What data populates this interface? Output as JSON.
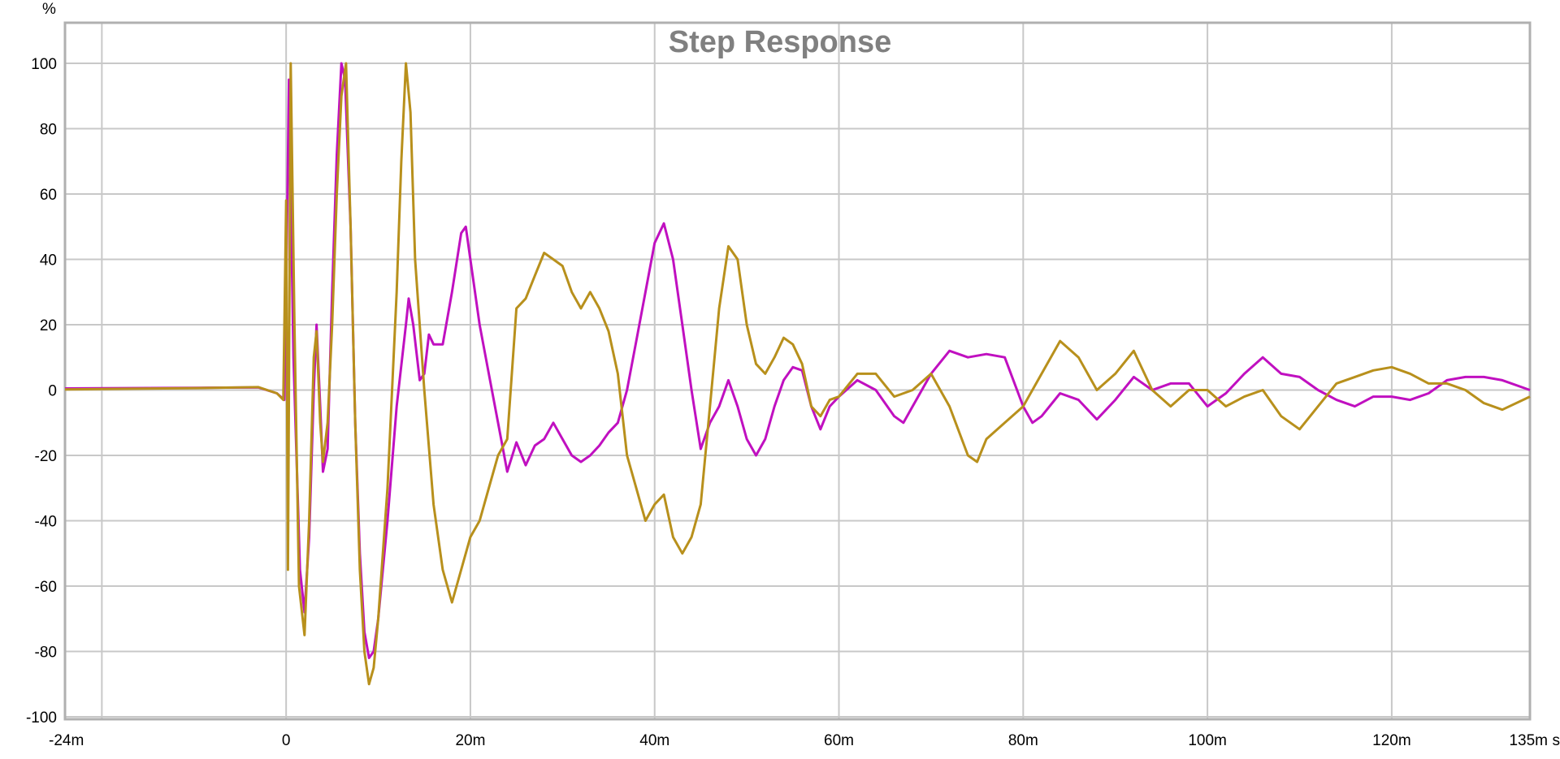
{
  "chart_data": {
    "type": "line",
    "title": "Step Response",
    "y_unit": "%",
    "x_unit": "s",
    "xlim": [
      -0.024,
      0.135
    ],
    "ylim": [
      -100,
      110
    ],
    "grid": true,
    "x_ticks": [
      {
        "value": -0.024,
        "label": "-24m"
      },
      {
        "value": 0,
        "label": "0"
      },
      {
        "value": 0.02,
        "label": "20m"
      },
      {
        "value": 0.04,
        "label": "40m"
      },
      {
        "value": 0.06,
        "label": "60m"
      },
      {
        "value": 0.08,
        "label": "80m"
      },
      {
        "value": 0.1,
        "label": "100m"
      },
      {
        "value": 0.12,
        "label": "120m"
      },
      {
        "value": 0.135,
        "label": "135m"
      }
    ],
    "y_ticks": [
      {
        "value": 100,
        "label": "100"
      },
      {
        "value": 80,
        "label": "80"
      },
      {
        "value": 60,
        "label": "60"
      },
      {
        "value": 40,
        "label": "40"
      },
      {
        "value": 20,
        "label": "20"
      },
      {
        "value": 0,
        "label": "0"
      },
      {
        "value": -20,
        "label": "-20"
      },
      {
        "value": -40,
        "label": "-40"
      },
      {
        "value": -60,
        "label": "-60"
      },
      {
        "value": -80,
        "label": "-80"
      },
      {
        "value": -100,
        "label": "-100"
      }
    ],
    "series": [
      {
        "color": "#c010c0",
        "points": [
          [
            -0.024,
            0.5
          ],
          [
            -0.01,
            0.7
          ],
          [
            -0.003,
            0.8
          ],
          [
            -0.001,
            -1
          ],
          [
            -0.0002,
            -3
          ],
          [
            0.0,
            30
          ],
          [
            0.0003,
            95
          ],
          [
            0.0008,
            10
          ],
          [
            0.0015,
            -55
          ],
          [
            0.002,
            -68
          ],
          [
            0.0025,
            -45
          ],
          [
            0.003,
            0
          ],
          [
            0.0033,
            20
          ],
          [
            0.0037,
            -5
          ],
          [
            0.004,
            -25
          ],
          [
            0.0045,
            -18
          ],
          [
            0.005,
            30
          ],
          [
            0.0055,
            72
          ],
          [
            0.006,
            100
          ],
          [
            0.0064,
            95
          ],
          [
            0.007,
            50
          ],
          [
            0.0075,
            -10
          ],
          [
            0.008,
            -50
          ],
          [
            0.0085,
            -74
          ],
          [
            0.009,
            -82
          ],
          [
            0.0095,
            -80
          ],
          [
            0.01,
            -70
          ],
          [
            0.011,
            -40
          ],
          [
            0.012,
            -5
          ],
          [
            0.013,
            20
          ],
          [
            0.0133,
            28
          ],
          [
            0.0138,
            20
          ],
          [
            0.0145,
            3
          ],
          [
            0.015,
            5
          ],
          [
            0.0155,
            17
          ],
          [
            0.016,
            14
          ],
          [
            0.017,
            14
          ],
          [
            0.018,
            30
          ],
          [
            0.019,
            48
          ],
          [
            0.0195,
            50
          ],
          [
            0.02,
            40
          ],
          [
            0.021,
            20
          ],
          [
            0.022,
            5
          ],
          [
            0.023,
            -10
          ],
          [
            0.024,
            -25
          ],
          [
            0.025,
            -16
          ],
          [
            0.026,
            -23
          ],
          [
            0.027,
            -17
          ],
          [
            0.028,
            -15
          ],
          [
            0.029,
            -10
          ],
          [
            0.03,
            -15
          ],
          [
            0.031,
            -20
          ],
          [
            0.032,
            -22
          ],
          [
            0.033,
            -20
          ],
          [
            0.034,
            -17
          ],
          [
            0.035,
            -13
          ],
          [
            0.036,
            -10
          ],
          [
            0.037,
            0
          ],
          [
            0.038,
            15
          ],
          [
            0.039,
            30
          ],
          [
            0.04,
            45
          ],
          [
            0.041,
            51
          ],
          [
            0.042,
            40
          ],
          [
            0.043,
            20
          ],
          [
            0.044,
            0
          ],
          [
            0.045,
            -18
          ],
          [
            0.046,
            -10
          ],
          [
            0.047,
            -5
          ],
          [
            0.048,
            3
          ],
          [
            0.049,
            -5
          ],
          [
            0.05,
            -15
          ],
          [
            0.051,
            -20
          ],
          [
            0.052,
            -15
          ],
          [
            0.053,
            -5
          ],
          [
            0.054,
            3
          ],
          [
            0.055,
            7
          ],
          [
            0.056,
            6
          ],
          [
            0.057,
            -5
          ],
          [
            0.058,
            -12
          ],
          [
            0.059,
            -5
          ],
          [
            0.06,
            -2
          ],
          [
            0.062,
            3
          ],
          [
            0.064,
            0
          ],
          [
            0.066,
            -8
          ],
          [
            0.067,
            -10
          ],
          [
            0.068,
            -5
          ],
          [
            0.07,
            5
          ],
          [
            0.072,
            12
          ],
          [
            0.074,
            10
          ],
          [
            0.076,
            11
          ],
          [
            0.078,
            10
          ],
          [
            0.08,
            -5
          ],
          [
            0.081,
            -10
          ],
          [
            0.082,
            -8
          ],
          [
            0.084,
            -1
          ],
          [
            0.086,
            -3
          ],
          [
            0.088,
            -9
          ],
          [
            0.09,
            -3
          ],
          [
            0.092,
            4
          ],
          [
            0.094,
            0
          ],
          [
            0.096,
            2
          ],
          [
            0.098,
            2
          ],
          [
            0.1,
            -5
          ],
          [
            0.102,
            -1
          ],
          [
            0.104,
            5
          ],
          [
            0.106,
            10
          ],
          [
            0.108,
            5
          ],
          [
            0.11,
            4
          ],
          [
            0.112,
            0
          ],
          [
            0.114,
            -3
          ],
          [
            0.116,
            -5
          ],
          [
            0.118,
            -2
          ],
          [
            0.12,
            -2
          ],
          [
            0.122,
            -3
          ],
          [
            0.124,
            -1
          ],
          [
            0.126,
            3
          ],
          [
            0.128,
            4
          ],
          [
            0.13,
            4
          ],
          [
            0.132,
            3
          ],
          [
            0.135,
            0
          ]
        ]
      },
      {
        "color": "#b8901c",
        "points": [
          [
            -0.024,
            0.2
          ],
          [
            -0.01,
            0.6
          ],
          [
            -0.003,
            0.9
          ],
          [
            -0.001,
            -1
          ],
          [
            -0.0003,
            -3
          ],
          [
            0.0,
            58
          ],
          [
            0.0002,
            -55
          ],
          [
            0.0005,
            100
          ],
          [
            0.0009,
            20
          ],
          [
            0.0014,
            -60
          ],
          [
            0.002,
            -75
          ],
          [
            0.0025,
            -40
          ],
          [
            0.003,
            10
          ],
          [
            0.0033,
            18
          ],
          [
            0.0037,
            -10
          ],
          [
            0.004,
            -22
          ],
          [
            0.0045,
            -10
          ],
          [
            0.005,
            20
          ],
          [
            0.0055,
            60
          ],
          [
            0.006,
            90
          ],
          [
            0.0065,
            100
          ],
          [
            0.007,
            50
          ],
          [
            0.0075,
            -10
          ],
          [
            0.008,
            -55
          ],
          [
            0.0085,
            -80
          ],
          [
            0.009,
            -90
          ],
          [
            0.0095,
            -85
          ],
          [
            0.01,
            -70
          ],
          [
            0.011,
            -30
          ],
          [
            0.012,
            30
          ],
          [
            0.0125,
            70
          ],
          [
            0.013,
            100
          ],
          [
            0.0135,
            85
          ],
          [
            0.014,
            40
          ],
          [
            0.015,
            0
          ],
          [
            0.016,
            -35
          ],
          [
            0.017,
            -55
          ],
          [
            0.018,
            -65
          ],
          [
            0.019,
            -55
          ],
          [
            0.02,
            -45
          ],
          [
            0.021,
            -40
          ],
          [
            0.022,
            -30
          ],
          [
            0.023,
            -20
          ],
          [
            0.024,
            -15
          ],
          [
            0.025,
            25
          ],
          [
            0.026,
            28
          ],
          [
            0.027,
            35
          ],
          [
            0.028,
            42
          ],
          [
            0.029,
            40
          ],
          [
            0.03,
            38
          ],
          [
            0.031,
            30
          ],
          [
            0.032,
            25
          ],
          [
            0.033,
            30
          ],
          [
            0.034,
            25
          ],
          [
            0.035,
            18
          ],
          [
            0.036,
            5
          ],
          [
            0.037,
            -20
          ],
          [
            0.038,
            -30
          ],
          [
            0.039,
            -40
          ],
          [
            0.04,
            -35
          ],
          [
            0.041,
            -32
          ],
          [
            0.042,
            -45
          ],
          [
            0.043,
            -50
          ],
          [
            0.044,
            -45
          ],
          [
            0.045,
            -35
          ],
          [
            0.046,
            -5
          ],
          [
            0.047,
            25
          ],
          [
            0.048,
            44
          ],
          [
            0.049,
            40
          ],
          [
            0.05,
            20
          ],
          [
            0.051,
            8
          ],
          [
            0.052,
            5
          ],
          [
            0.053,
            10
          ],
          [
            0.054,
            16
          ],
          [
            0.055,
            14
          ],
          [
            0.056,
            8
          ],
          [
            0.057,
            -5
          ],
          [
            0.058,
            -8
          ],
          [
            0.059,
            -3
          ],
          [
            0.06,
            -2
          ],
          [
            0.062,
            5
          ],
          [
            0.064,
            5
          ],
          [
            0.066,
            -2
          ],
          [
            0.068,
            0
          ],
          [
            0.07,
            5
          ],
          [
            0.072,
            -5
          ],
          [
            0.074,
            -20
          ],
          [
            0.075,
            -22
          ],
          [
            0.076,
            -15
          ],
          [
            0.078,
            -10
          ],
          [
            0.08,
            -5
          ],
          [
            0.082,
            5
          ],
          [
            0.084,
            15
          ],
          [
            0.086,
            10
          ],
          [
            0.088,
            0
          ],
          [
            0.09,
            5
          ],
          [
            0.092,
            12
          ],
          [
            0.094,
            0
          ],
          [
            0.096,
            -5
          ],
          [
            0.098,
            0
          ],
          [
            0.1,
            0
          ],
          [
            0.102,
            -5
          ],
          [
            0.104,
            -2
          ],
          [
            0.106,
            0
          ],
          [
            0.108,
            -8
          ],
          [
            0.11,
            -12
          ],
          [
            0.112,
            -5
          ],
          [
            0.114,
            2
          ],
          [
            0.116,
            4
          ],
          [
            0.118,
            6
          ],
          [
            0.12,
            7
          ],
          [
            0.122,
            5
          ],
          [
            0.124,
            2
          ],
          [
            0.126,
            2
          ],
          [
            0.128,
            0
          ],
          [
            0.13,
            -4
          ],
          [
            0.132,
            -6
          ],
          [
            0.135,
            -2
          ]
        ]
      }
    ]
  }
}
